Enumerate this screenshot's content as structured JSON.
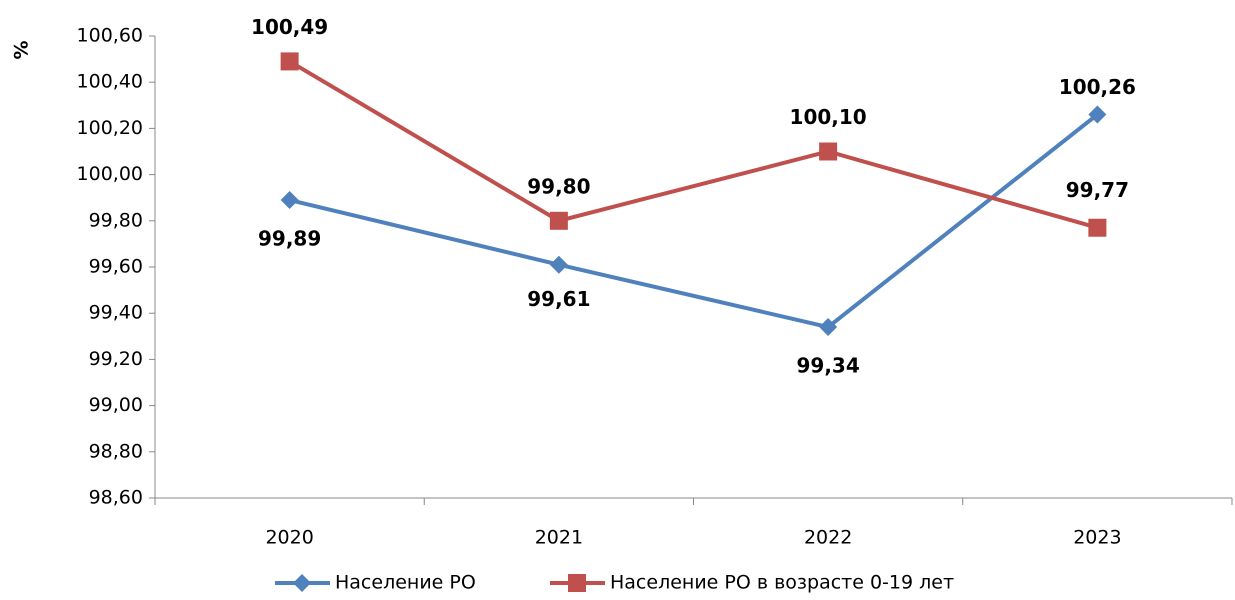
{
  "chart_data": {
    "type": "line",
    "y_label": "%",
    "categories": [
      "2020",
      "2021",
      "2022",
      "2023"
    ],
    "series": [
      {
        "name": "Население РО",
        "color": "#4f81bd",
        "marker": "diamond",
        "values": [
          99.89,
          99.61,
          99.34,
          100.26
        ],
        "value_labels": [
          "99,89",
          "99,61",
          "99,34",
          "100,26"
        ]
      },
      {
        "name": "Население РО в возрасте 0-19 лет",
        "color": "#c0504d",
        "marker": "square",
        "values": [
          100.49,
          99.8,
          100.1,
          99.77
        ],
        "value_labels": [
          "100,49",
          "99,80",
          "100,10",
          "99,77"
        ]
      }
    ],
    "ylim": [
      98.6,
      100.6
    ],
    "yticks": [
      {
        "value": 98.6,
        "label": "98,60"
      },
      {
        "value": 98.8,
        "label": "98,80"
      },
      {
        "value": 99.0,
        "label": "99,00"
      },
      {
        "value": 99.2,
        "label": "99,20"
      },
      {
        "value": 99.4,
        "label": "99,40"
      },
      {
        "value": 99.6,
        "label": "99,60"
      },
      {
        "value": 99.8,
        "label": "99,80"
      },
      {
        "value": 100.0,
        "label": "100,00"
      },
      {
        "value": 100.2,
        "label": "100,20"
      },
      {
        "value": 100.4,
        "label": "100,40"
      },
      {
        "value": 100.6,
        "label": "100,60"
      }
    ],
    "legend": "bottom"
  }
}
